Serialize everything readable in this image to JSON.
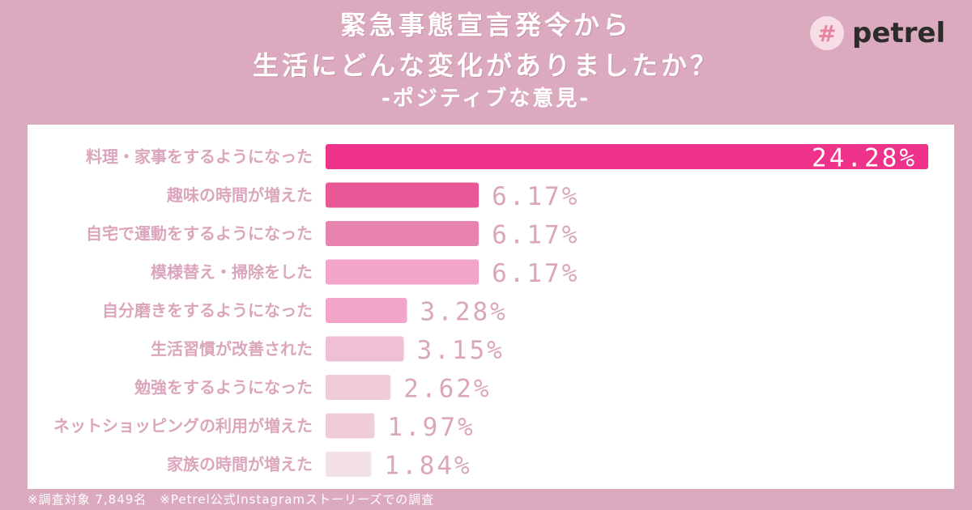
{
  "header": {
    "title_line1": "緊急事態宣言発令から",
    "title_line2": "生活にどんな変化がありましたか？",
    "subtitle": "-ポジティブな意見-"
  },
  "logo": {
    "icon": "hash-icon",
    "text": "petrel"
  },
  "footnote": "※調査対象 7,849名　※Petrel公式Instagramストーリーズでの調査",
  "chart_data": {
    "type": "bar",
    "orientation": "horizontal",
    "categories": [
      "料理・家事をするようになった",
      "趣味の時間が増えた",
      "自宅で運動をするようになった",
      "模様替え・掃除をした",
      "自分磨きをするようになった",
      "生活習慣が改善された",
      "勉強をするようになった",
      "ネットショッピングの利用が増えた",
      "家族の時間が増えた"
    ],
    "values": [
      24.28,
      6.17,
      6.17,
      6.17,
      3.28,
      3.15,
      2.62,
      1.97,
      1.84
    ],
    "value_labels": [
      "24.28%",
      "6.17%",
      "6.17%",
      "6.17%",
      "3.28%",
      "3.15%",
      "2.62%",
      "1.97%",
      "1.84%"
    ],
    "bar_colors": [
      "#f0338a",
      "#ea5796",
      "#e882ae",
      "#f3a4c9",
      "#f3a4c9",
      "#efbfd3",
      "#f0ccda",
      "#f0ccda",
      "#f4e0e8"
    ],
    "label_color": "#dba6bc",
    "value_inside_color": "#ffffff"
  }
}
